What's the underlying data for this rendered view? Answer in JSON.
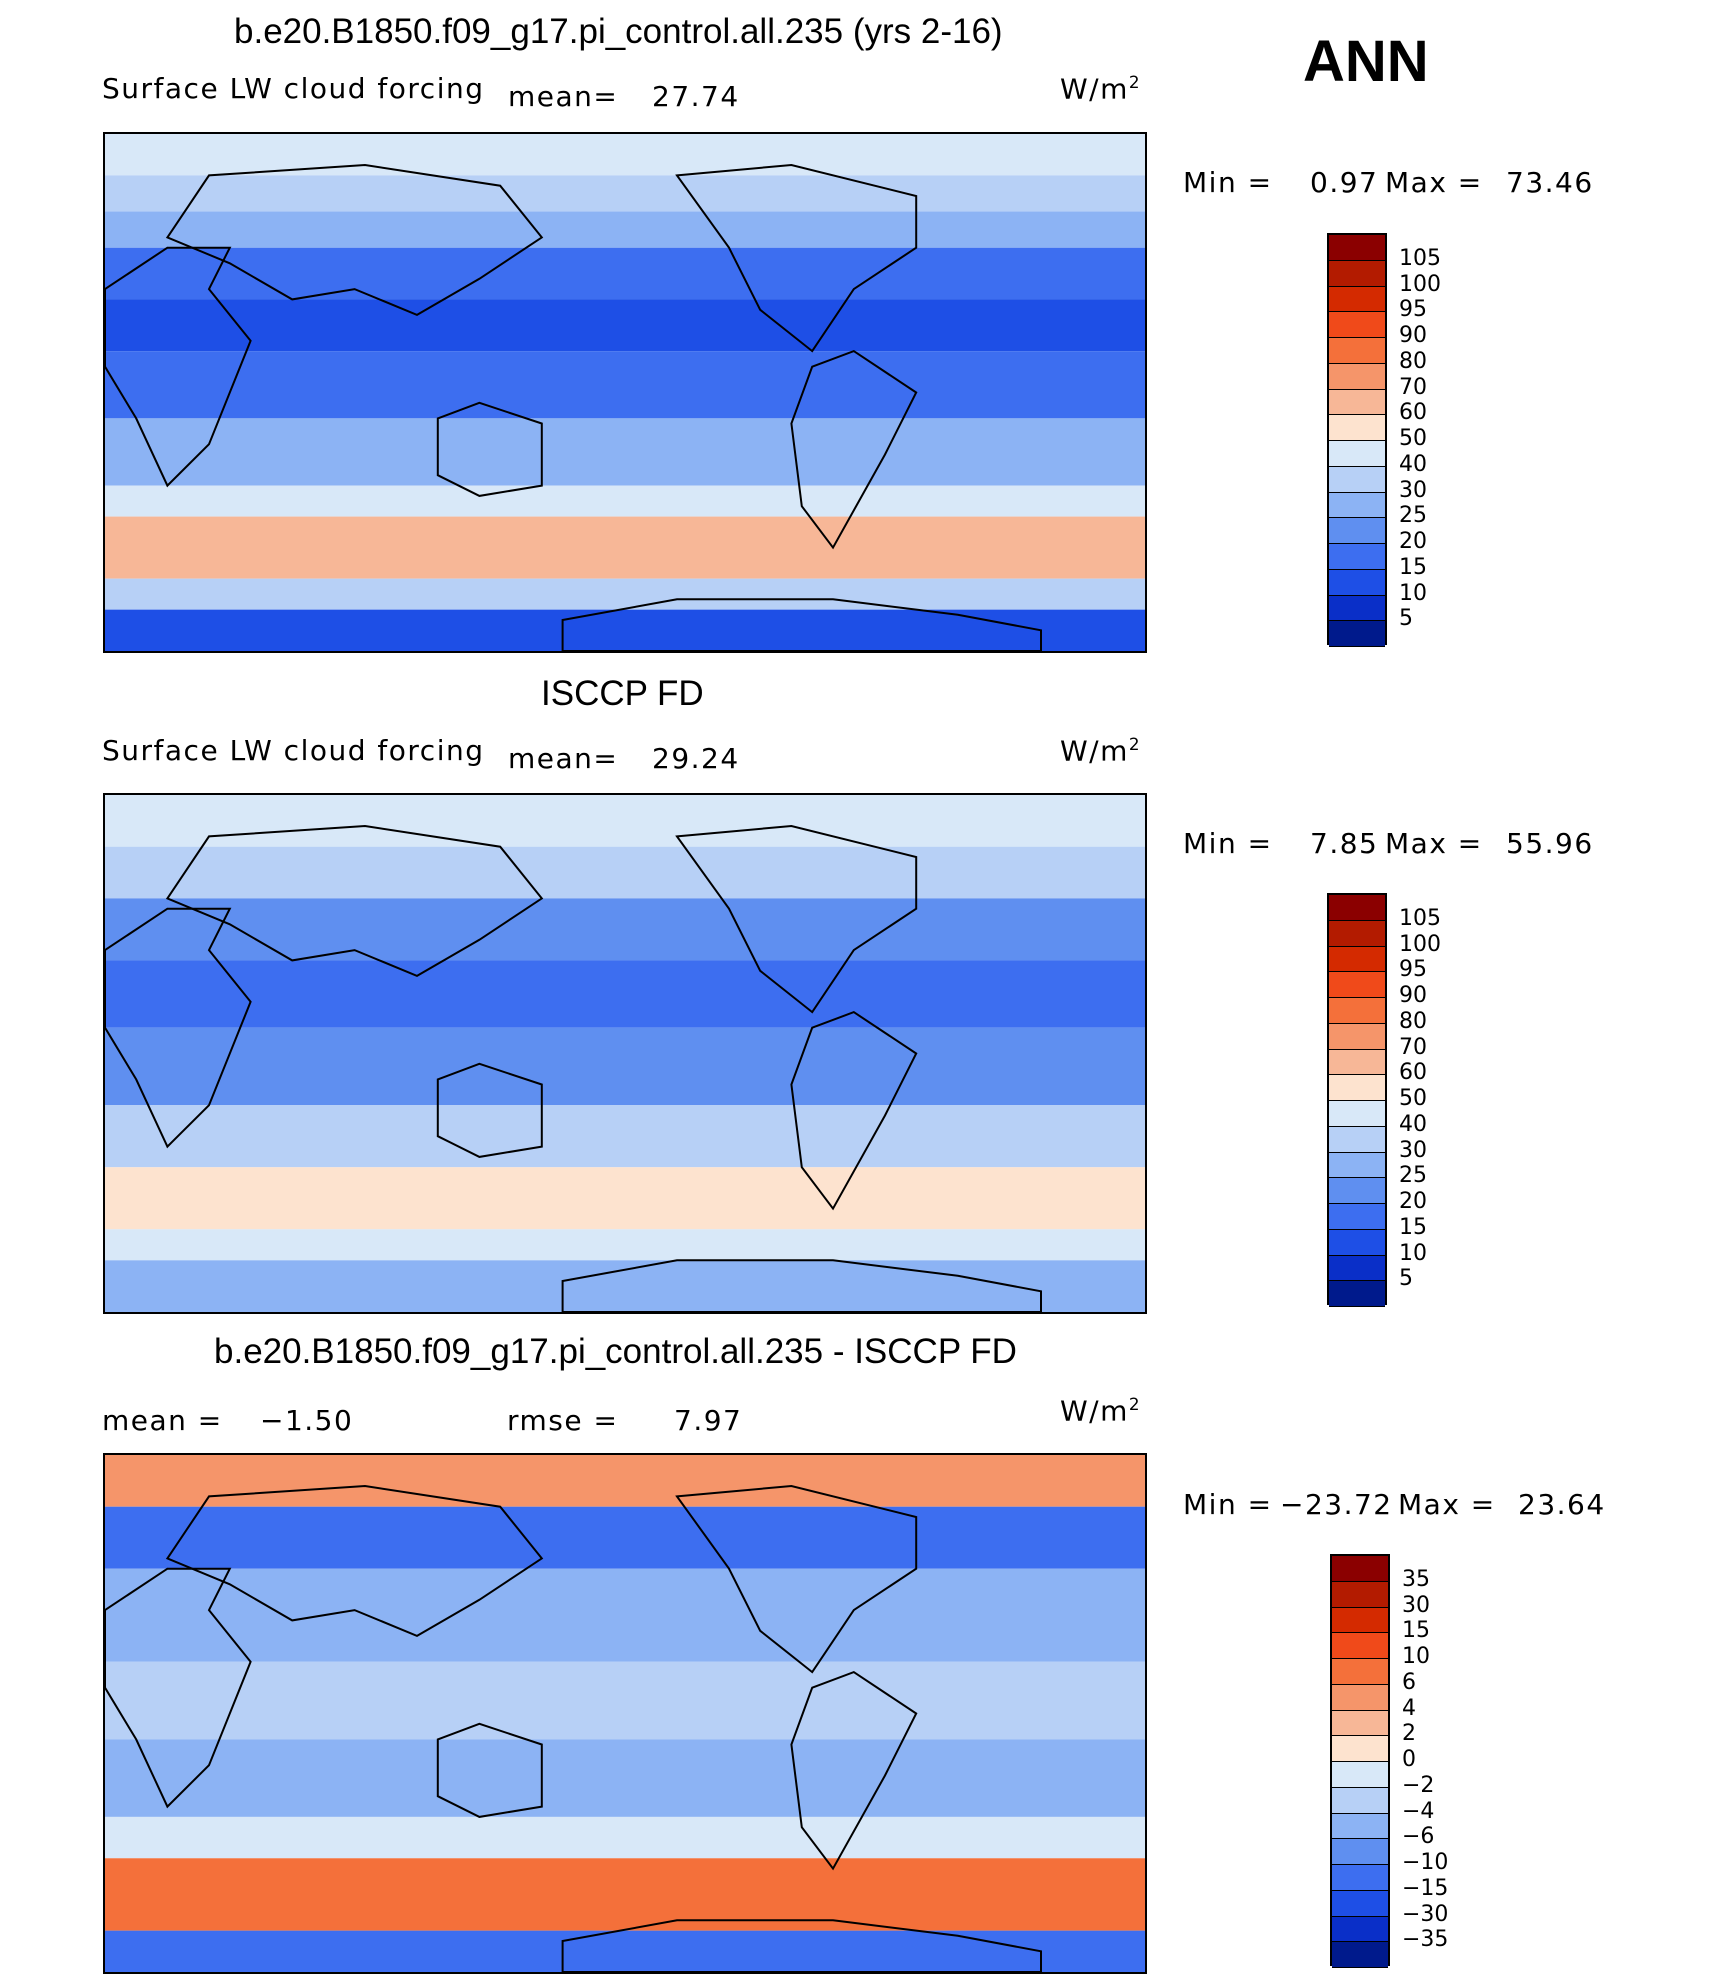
{
  "season": "ANN",
  "panels": [
    {
      "title": "b.e20.B1850.f09_g17.pi_control.all.235 (yrs 2-16)",
      "left_label": "Surface LW cloud forcing",
      "mean_label": "mean=",
      "mean_value": "27.74",
      "units_base": "W/m",
      "units_exp": "2",
      "min_label": "Min =",
      "min_value": "0.97",
      "max_label": "Max =",
      "max_value": "73.46",
      "scale": "abs"
    },
    {
      "title": "ISCCP FD",
      "left_label": "Surface LW cloud forcing",
      "mean_label": "mean=",
      "mean_value": "29.24",
      "units_base": "W/m",
      "units_exp": "2",
      "min_label": "Min =",
      "min_value": "7.85",
      "max_label": "Max =",
      "max_value": "55.96",
      "scale": "obs"
    },
    {
      "title": "b.e20.B1850.f09_g17.pi_control.all.235 - ISCCP FD",
      "mean_label": "mean =",
      "mean_value": "−1.50",
      "rmse_label": "rmse =",
      "rmse_value": "7.97",
      "units_base": "W/m",
      "units_exp": "2",
      "min_label": "Min =",
      "min_value": "−23.72",
      "max_label": "Max =",
      "max_value": "23.64",
      "scale": "diff"
    }
  ],
  "colorbars": {
    "abs": {
      "labels": [
        "105",
        "100",
        "95",
        "90",
        "80",
        "70",
        "60",
        "50",
        "40",
        "30",
        "25",
        "20",
        "15",
        "10",
        "5"
      ],
      "colors": [
        "#8b0000",
        "#b31b00",
        "#d42a00",
        "#f04a1a",
        "#f4703a",
        "#f5956a",
        "#f7b797",
        "#fde3cf",
        "#d8e8f8",
        "#b7d0f6",
        "#8cb3f4",
        "#5f8ff0",
        "#3d6ef0",
        "#1e4fe6",
        "#0a2fc8",
        "#001a8c"
      ]
    },
    "diff": {
      "labels": [
        "35",
        "30",
        "15",
        "10",
        "6",
        "4",
        "2",
        "0",
        "−2",
        "−4",
        "−6",
        "−10",
        "−15",
        "−30",
        "−35"
      ],
      "colors": [
        "#8b0000",
        "#b31b00",
        "#d42a00",
        "#f04a1a",
        "#f4703a",
        "#f5956a",
        "#f7b797",
        "#fde3cf",
        "#d8e8f8",
        "#b7d0f6",
        "#8cb3f4",
        "#5f8ff0",
        "#3d6ef0",
        "#1e4fe6",
        "#0a2fc8",
        "#001a8c"
      ]
    }
  }
}
